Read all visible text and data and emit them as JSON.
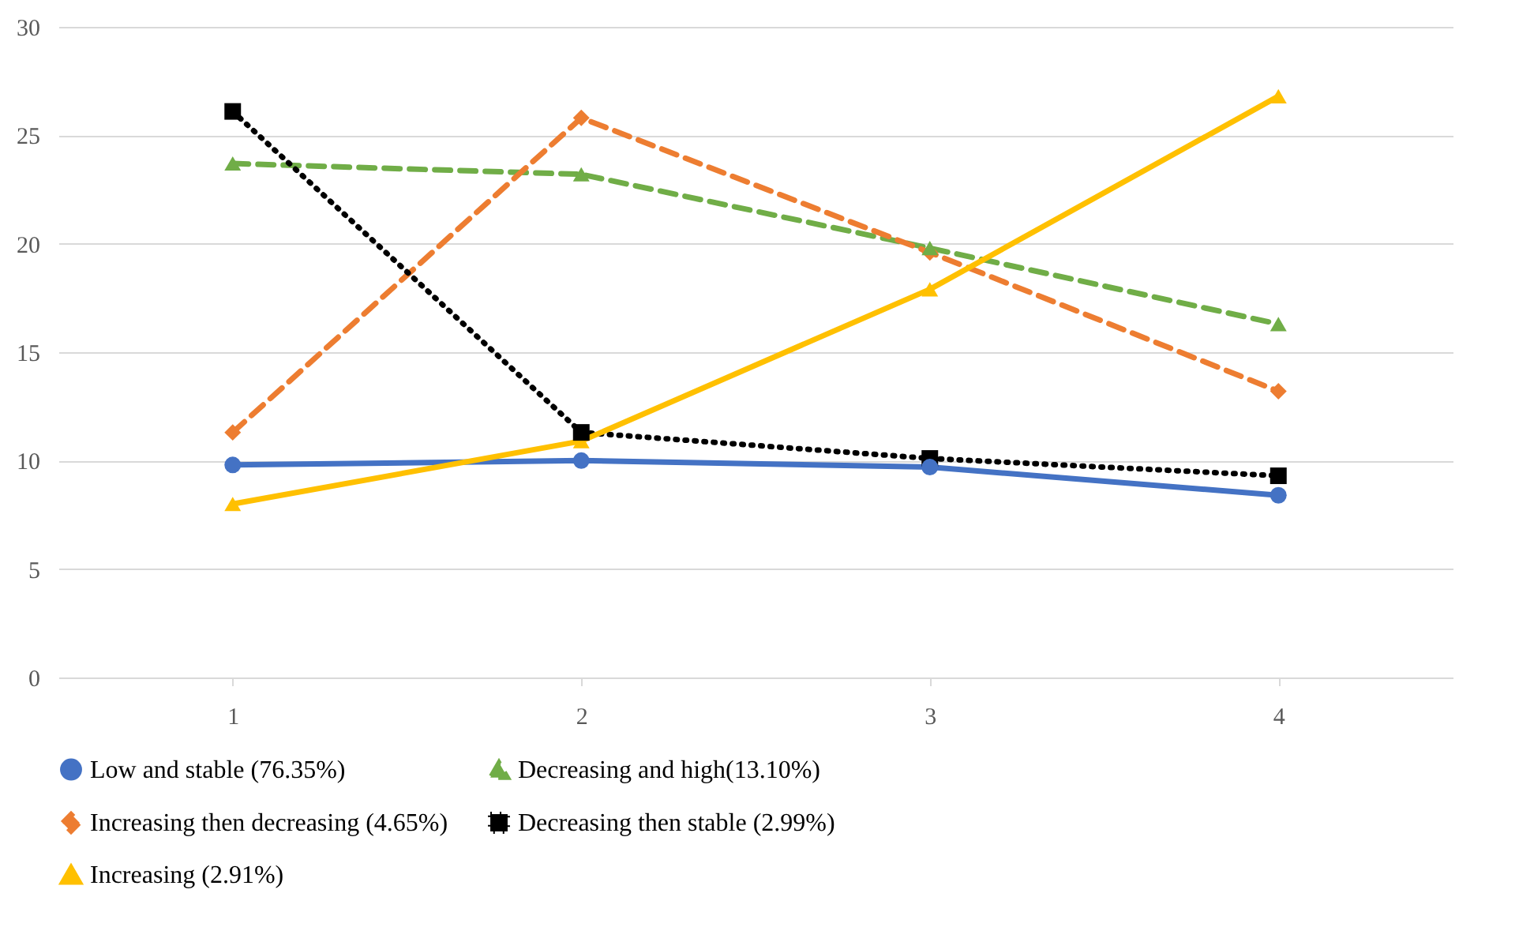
{
  "chart_data": {
    "type": "line",
    "categories": [
      "1",
      "2",
      "3",
      "4"
    ],
    "series": [
      {
        "name": "Low and stable (76.35%)",
        "color": "#4472c4",
        "marker": "circle",
        "line_style": "solid",
        "values": [
          9.8,
          10.0,
          9.7,
          8.4
        ]
      },
      {
        "name": "Decreasing and high(13.10%)",
        "color": "#70ad47",
        "marker": "triangle",
        "line_style": "dashed",
        "values": [
          23.7,
          23.2,
          19.8,
          16.3
        ]
      },
      {
        "name": "Increasing then decreasing (4.65%)",
        "color": "#ed7d31",
        "marker": "diamond",
        "line_style": "dashed",
        "values": [
          11.3,
          25.8,
          19.6,
          13.2
        ]
      },
      {
        "name": "Decreasing then stable (2.99%)",
        "color": "#000000",
        "marker": "square",
        "line_style": "dotted",
        "values": [
          26.1,
          11.3,
          10.1,
          9.3
        ]
      },
      {
        "name": "Increasing (2.91%)",
        "color": "#ffc000",
        "marker": "triangle",
        "line_style": "solid",
        "values": [
          8.0,
          10.9,
          17.9,
          26.8
        ]
      }
    ],
    "ylim": [
      0,
      30
    ],
    "yticks": [
      0,
      5,
      10,
      15,
      20,
      25,
      30
    ],
    "grid": "y",
    "legend": "bottom"
  }
}
